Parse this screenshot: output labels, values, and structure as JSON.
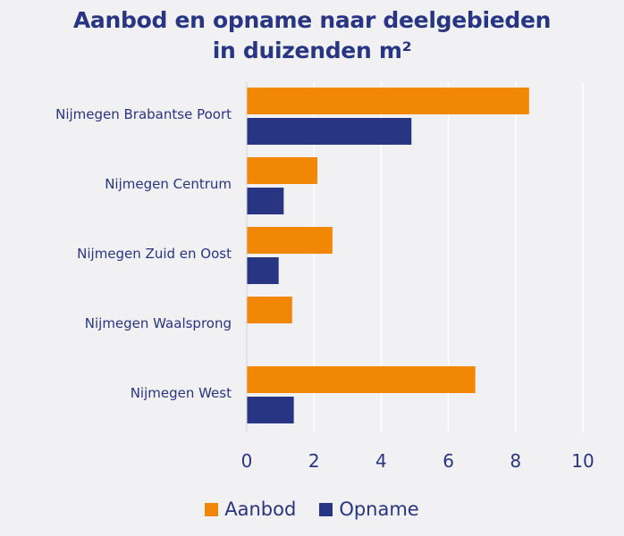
{
  "colors": {
    "aanbod": "#f28705",
    "opname": "#283583",
    "text": "#283583",
    "grid": "#ffffff"
  },
  "chart_data": {
    "type": "bar",
    "orientation": "horizontal",
    "title_line1": "Aanbod en opname naar deelgebieden",
    "title_line2": "in duizenden m²",
    "categories": [
      "Nijmegen Brabantse Poort",
      "Nijmegen Centrum",
      "Nijmegen Zuid en Oost",
      "Nijmegen Waalsprong",
      "Nijmegen West"
    ],
    "series": [
      {
        "name": "Aanbod",
        "values": [
          8.4,
          2.1,
          2.55,
          1.35,
          6.8
        ]
      },
      {
        "name": "Opname",
        "values": [
          4.9,
          1.1,
          0.95,
          0,
          1.4
        ]
      }
    ],
    "xlim": [
      0,
      10
    ],
    "xticks": [
      "0",
      "2",
      "4",
      "6",
      "8",
      "10"
    ],
    "grid": true,
    "legend_position": "bottom"
  }
}
